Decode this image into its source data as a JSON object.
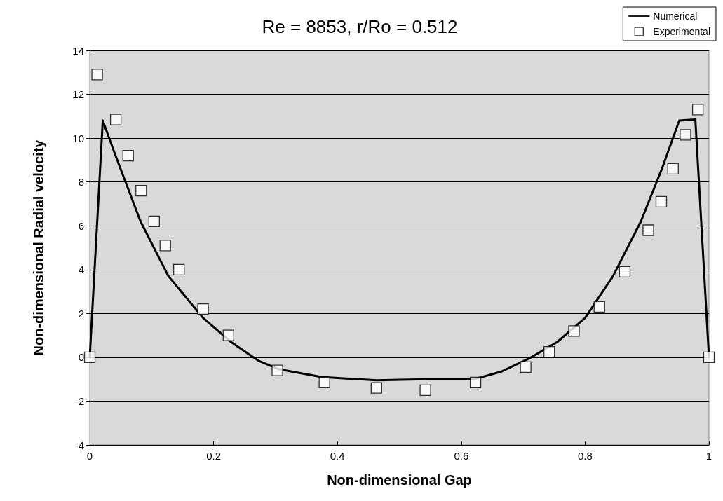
{
  "chart_data": {
    "type": "line",
    "title": "Re = 8853, r/Ro = 0.512",
    "xlabel": "Non-dimensional Gap",
    "ylabel": "Non-dimensional Radial velocity",
    "xlim": [
      0,
      1
    ],
    "xticks": [
      0,
      0.2,
      0.4,
      0.6,
      0.8,
      1
    ],
    "ylim": [
      -4,
      14
    ],
    "yticks": [
      -4,
      -2,
      0,
      2,
      4,
      6,
      8,
      10,
      12,
      14
    ],
    "grid": "y",
    "legend": "top right",
    "series": [
      {
        "name": "Numerical",
        "color": "#000000",
        "marker": "none",
        "line_style": "solid",
        "x": [
          0,
          0.021,
          0.043,
          0.082,
          0.127,
          0.183,
          0.228,
          0.272,
          0.306,
          0.374,
          0.463,
          0.542,
          0.621,
          0.665,
          0.71,
          0.755,
          0.8,
          0.845,
          0.89,
          0.924,
          0.952,
          0.978,
          1
        ],
        "values": [
          0,
          10.8,
          9.1,
          6.2,
          3.7,
          1.8,
          0.7,
          -0.15,
          -0.55,
          -0.9,
          -1.05,
          -1.0,
          -1.0,
          -0.65,
          -0.05,
          0.7,
          1.8,
          3.7,
          6.2,
          8.6,
          10.8,
          10.85,
          0
        ]
      },
      {
        "name": "Experimental",
        "type": "scatter",
        "color": "#000000",
        "marker": "square",
        "x": [
          0,
          0.012,
          0.042,
          0.062,
          0.083,
          0.104,
          0.122,
          0.144,
          0.183,
          0.224,
          0.303,
          0.379,
          0.463,
          0.542,
          0.623,
          0.704,
          0.742,
          0.782,
          0.823,
          0.864,
          0.902,
          0.923,
          0.942,
          0.962,
          0.982,
          1
        ],
        "values": [
          0,
          12.9,
          10.85,
          9.2,
          7.6,
          6.2,
          5.1,
          4.0,
          2.2,
          1.0,
          -0.6,
          -1.15,
          -1.4,
          -1.5,
          -1.15,
          -0.45,
          0.25,
          1.2,
          2.3,
          3.9,
          5.8,
          7.1,
          8.6,
          10.15,
          11.3,
          0
        ]
      }
    ]
  }
}
